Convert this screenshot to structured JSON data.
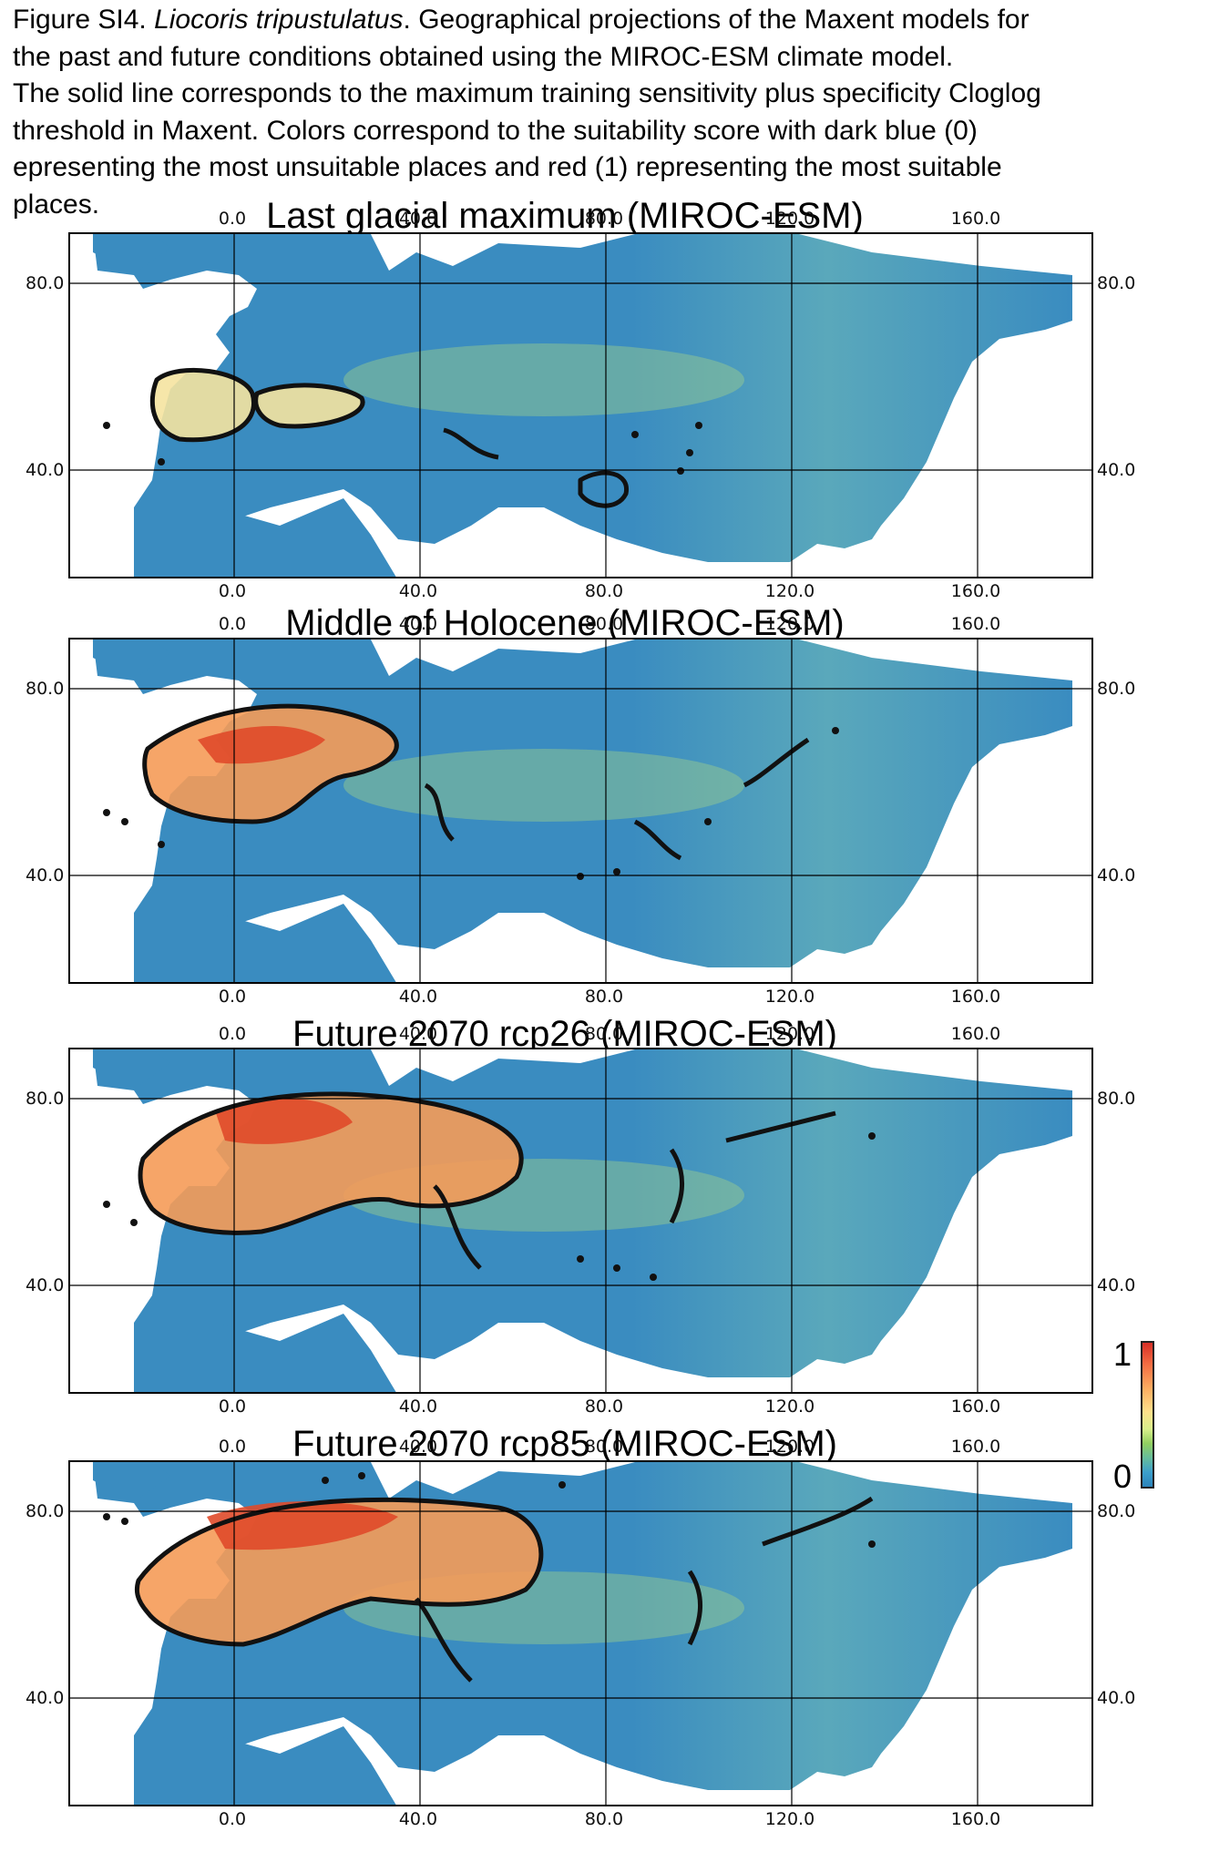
{
  "caption": {
    "lines": [
      {
        "pre": "Figure SI4. ",
        "italic": "Liocoris tripustulatus",
        "post": ". Geographical projections of the Maxent models for"
      },
      {
        "pre": "the past and future conditions obtained using the MIROC-ESM climate model.",
        "italic": "",
        "post": ""
      },
      {
        "pre": "The solid line corresponds to the maximum training sensitivity plus specificity Cloglog",
        "italic": "",
        "post": ""
      },
      {
        "pre": "threshold in Maxent. Colors correspond to the suitability score with dark blue (0)",
        "italic": "",
        "post": ""
      },
      {
        "pre": " epresenting the most unsuitable places and red (1) representing the most suitable",
        "italic": "",
        "post": ""
      },
      {
        "pre": "places.",
        "italic": "",
        "post": ""
      }
    ]
  },
  "panels": [
    {
      "title": "Last glacial maximum (MIROC-ESM)",
      "scenario": "lgm"
    },
    {
      "title": "Middle of Holocene (MIROC-ESM)",
      "scenario": "mh"
    },
    {
      "title": "Future 2070 rcp26 (MIROC-ESM)",
      "scenario": "rcp26"
    },
    {
      "title": "Future 2070 rcp85 (MIROC-ESM)",
      "scenario": "rcp85"
    }
  ],
  "axes": {
    "lon_ticks": [
      "0.0",
      "40.0",
      "80.0",
      "120.0",
      "160.0"
    ],
    "lat_ticks": [
      "80.0",
      "40.0"
    ],
    "lon_tick_values": [
      0,
      40,
      80,
      120,
      160
    ],
    "lat_tick_values": [
      80,
      40
    ]
  },
  "colorbar": {
    "max_label": "1",
    "min_label": "0",
    "colors": [
      "#d73027",
      "#f46d43",
      "#fdae61",
      "#fee08b",
      "#d9ef8b",
      "#91cf60",
      "#66bd9c",
      "#3c9fcc",
      "#2b83ba"
    ]
  },
  "colors": {
    "ocean_land_unsuitable": "#3a8cc0",
    "threshold_line": "#111111",
    "suitable_red": "#e04a2a",
    "suitable_orange": "#f59b58",
    "suitable_yellow": "#f5e3a0",
    "mid_green": "#9dcf8c"
  }
}
